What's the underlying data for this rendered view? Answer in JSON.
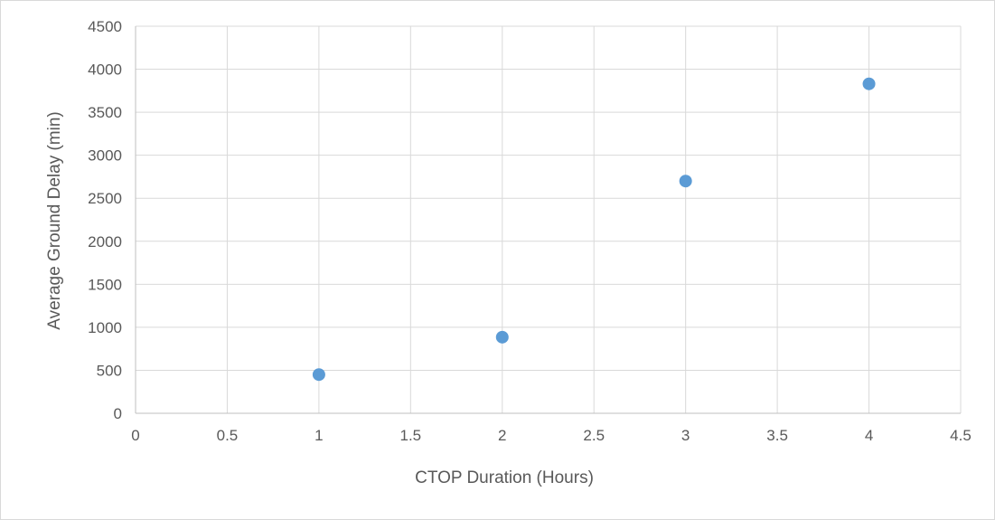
{
  "chart_data": {
    "type": "scatter",
    "title": "",
    "xlabel": "CTOP Duration (Hours)",
    "ylabel": "Average Ground Delay (min)",
    "xlim": [
      0,
      4.5
    ],
    "ylim": [
      0,
      4500
    ],
    "x_ticks": [
      "0",
      "0.5",
      "1",
      "1.5",
      "2",
      "2.5",
      "3",
      "3.5",
      "4",
      "4.5"
    ],
    "y_ticks": [
      "0",
      "500",
      "1000",
      "1500",
      "2000",
      "2500",
      "3000",
      "3500",
      "4000",
      "4500"
    ],
    "grid": true,
    "legend": "none",
    "series": [
      {
        "x": [
          1,
          2,
          3,
          4
        ],
        "y": [
          450,
          885,
          2700,
          3830
        ],
        "color": "#5b9bd5"
      }
    ],
    "gridline_color": "#d9d9d9",
    "axis_color": "#bfbfbf",
    "text_color": "#595959"
  }
}
